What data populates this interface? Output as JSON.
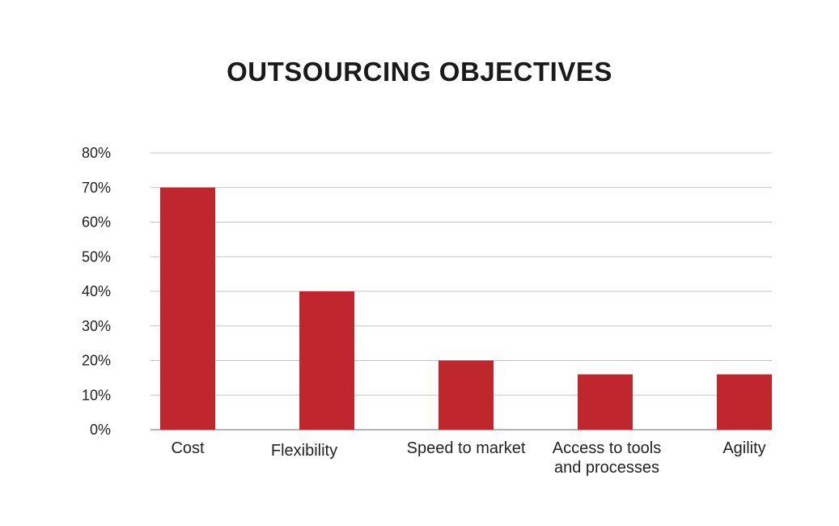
{
  "chart_data": {
    "type": "bar",
    "title": "OUTSOURCING OBJECTIVES",
    "categories": [
      [
        "Cost"
      ],
      [
        "Flexibility"
      ],
      [
        "Speed to market"
      ],
      [
        "Access to tools",
        "and processes"
      ],
      [
        "Agility"
      ]
    ],
    "values": [
      70,
      40,
      20,
      16,
      16
    ],
    "y_ticks": [
      "0%",
      "10%",
      "20%",
      "30%",
      "40%",
      "50%",
      "60%",
      "70%",
      "80%"
    ],
    "ylim": [
      0,
      80
    ],
    "grid": true,
    "bar_color": "#c0262e",
    "grid_color": "#c4c4c4"
  }
}
